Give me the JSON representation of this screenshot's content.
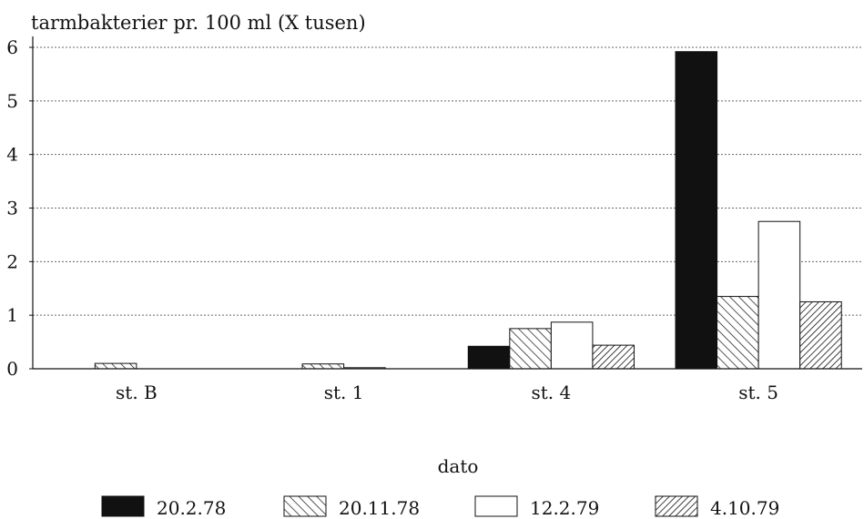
{
  "chart_data": {
    "type": "bar",
    "title": "tarmbakterier pr. 100 ml (X tusen)",
    "xlabel": "",
    "ylabel": "",
    "legend_title": "dato",
    "categories": [
      "st. B",
      "st. 1",
      "st. 4",
      "st. 5"
    ],
    "series": [
      {
        "name": "20.2.78",
        "values": [
          0,
          0,
          0.42,
          5.92
        ],
        "pattern": "solid"
      },
      {
        "name": "20.11.78",
        "values": [
          0.1,
          0.09,
          0.75,
          1.35
        ],
        "pattern": "back-hatch"
      },
      {
        "name": "12.2.79",
        "values": [
          0,
          0.02,
          0.87,
          2.75
        ],
        "pattern": "white"
      },
      {
        "name": "4.10.79",
        "values": [
          0,
          0,
          0.44,
          1.25
        ],
        "pattern": "forward-hatch"
      }
    ],
    "ylim": [
      0,
      6
    ],
    "yticks": [
      "0",
      "1",
      "2",
      "3",
      "4",
      "5",
      "6"
    ],
    "grid": true,
    "legend_position": "bottom"
  },
  "colors": {
    "ink": "#111111",
    "grid": "#666666",
    "background": "#ffffff"
  }
}
